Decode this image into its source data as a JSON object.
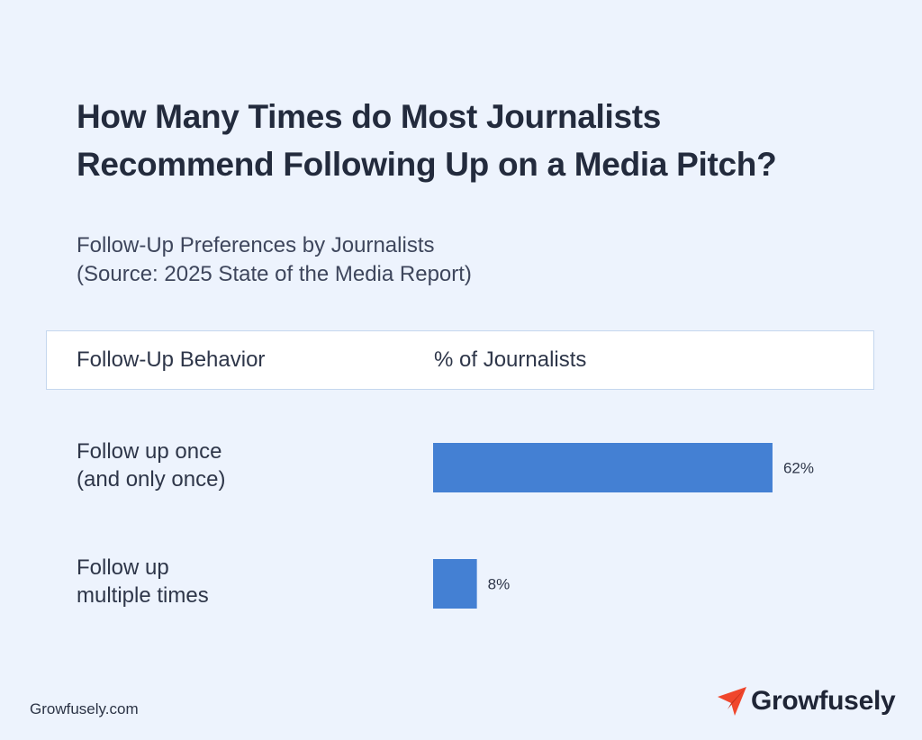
{
  "title": {
    "line1": "How Many Times do Most Journalists",
    "line2": "Recommend Following Up on a Media Pitch?"
  },
  "subtitle": {
    "line1": "Follow-Up Preferences by Journalists",
    "line2": "(Source: 2025 State of the Media Report)"
  },
  "table": {
    "col1_header": "Follow-Up Behavior",
    "col2_header": "% of Journalists"
  },
  "rows": [
    {
      "label_line1": "Follow up once",
      "label_line2": "(and only once)",
      "value_label": "62%"
    },
    {
      "label_line1": "Follow up",
      "label_line2": "multiple times",
      "value_label": "8%"
    }
  ],
  "chart_data": {
    "type": "bar",
    "orientation": "horizontal",
    "categories": [
      "Follow up once (and only once)",
      "Follow up multiple times"
    ],
    "values": [
      62,
      8
    ],
    "data_labels": [
      "62%",
      "8%"
    ],
    "xlim": [
      0,
      100
    ],
    "bar_color": "#4480d3",
    "grid": false,
    "legend": "none"
  },
  "footer": {
    "website": "Growfusely.com",
    "brand_name": "Growfusely",
    "logo_icon": "paper-plane-icon",
    "logo_color": "#f0462c"
  }
}
